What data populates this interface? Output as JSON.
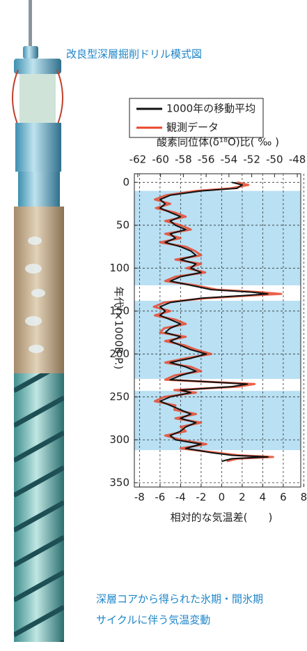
{
  "title": "改良型深層掘削ドリル模式図",
  "caption": [
    "深層コアから得られた氷期・間氷期",
    "サイクルに伴う気温変動"
  ],
  "chart_data": {
    "type": "line",
    "orientation": "vertical",
    "x2_label": "酸素同位体(δ¹⁸O)比( ‰ )",
    "x_label": "相対的な気温差(　　)",
    "y_label": "年代(×1000B.P.)",
    "age": [
      0,
      3,
      7,
      10,
      15,
      20,
      25,
      30,
      35,
      40,
      45,
      50,
      55,
      60,
      65,
      70,
      75,
      80,
      85,
      90,
      95,
      100,
      105,
      110,
      115,
      120,
      125,
      128,
      130,
      132,
      135,
      140,
      145,
      150,
      155,
      160,
      165,
      170,
      175,
      180,
      185,
      190,
      195,
      200,
      205,
      210,
      215,
      220,
      225,
      230,
      235,
      238,
      242,
      245,
      250,
      255,
      260,
      265,
      270,
      275,
      280,
      285,
      290,
      295,
      300,
      305,
      310,
      315,
      318,
      320,
      322,
      325
    ],
    "series": [
      {
        "name": "観測データ",
        "color": "#e8462a",
        "values": [
          1.5,
          2.6,
          0.9,
          -2.5,
          -5.4,
          -6.5,
          -5,
          -6.4,
          -4.6,
          -3.5,
          -5.5,
          -4,
          -3,
          -5.5,
          -4,
          -6,
          -3.5,
          -2.6,
          -2,
          -4.5,
          -2,
          -3.4,
          -1.6,
          -4.5,
          -5.5,
          -2.6,
          -0.5,
          3.8,
          5.8,
          2.6,
          -1.5,
          -5.6,
          -6.6,
          -5,
          -6.5,
          -4.5,
          -3.5,
          -5.6,
          -6,
          -3.5,
          -5.5,
          -3.6,
          -2.5,
          -1,
          -3.5,
          -5.5,
          -3,
          -2,
          -4.6,
          -5.5,
          3.2,
          1.6,
          -4.6,
          -2.5,
          -5.6,
          -6.5,
          -4.5,
          -4.6,
          -2.5,
          -4.5,
          -2,
          -4,
          -3.5,
          -5.5,
          -4,
          -1.5,
          -4,
          -0.5,
          1.6,
          5,
          1.5,
          0.5
        ]
      },
      {
        "name": "1000年の移動平均",
        "color": "#111111",
        "values": [
          1,
          2,
          1.5,
          -2,
          -5,
          -6,
          -5.5,
          -6,
          -5,
          -4,
          -5,
          -4.5,
          -3.5,
          -5,
          -4.5,
          -5.5,
          -4,
          -3,
          -2.5,
          -4,
          -2.5,
          -3,
          -2,
          -4,
          -5,
          -3,
          -1,
          3,
          4.5,
          2,
          -2,
          -5,
          -6,
          -5.5,
          -6,
          -5,
          -4,
          -5,
          -5.5,
          -4,
          -5,
          -4,
          -3,
          -1.5,
          -3,
          -5,
          -3.5,
          -2.5,
          -4,
          -5,
          2.5,
          1,
          -4,
          -3,
          -5,
          -6,
          -5,
          -4,
          -3,
          -4,
          -2.5,
          -3.5,
          -4,
          -5,
          -4.5,
          -2,
          -3.5,
          -1,
          1,
          4.5,
          1,
          0
        ]
      }
    ],
    "xlim": [
      -8.5,
      7.7
    ],
    "xticks": [
      -8,
      -6,
      -4,
      -2,
      0,
      2,
      4,
      6,
      8
    ],
    "x2lim": [
      -62.3,
      -47.7
    ],
    "x2ticks": [
      -62,
      -60,
      -58,
      -56,
      -54,
      -52,
      -50,
      -48
    ],
    "ylim": [
      -10,
      355
    ],
    "yticks": [
      0,
      50,
      100,
      150,
      200,
      250,
      300,
      350
    ],
    "shading": [
      [
        10,
        120
      ],
      [
        138,
        229
      ],
      [
        243,
        312
      ]
    ],
    "shading_color": "#b9e0f3",
    "grid": true
  }
}
